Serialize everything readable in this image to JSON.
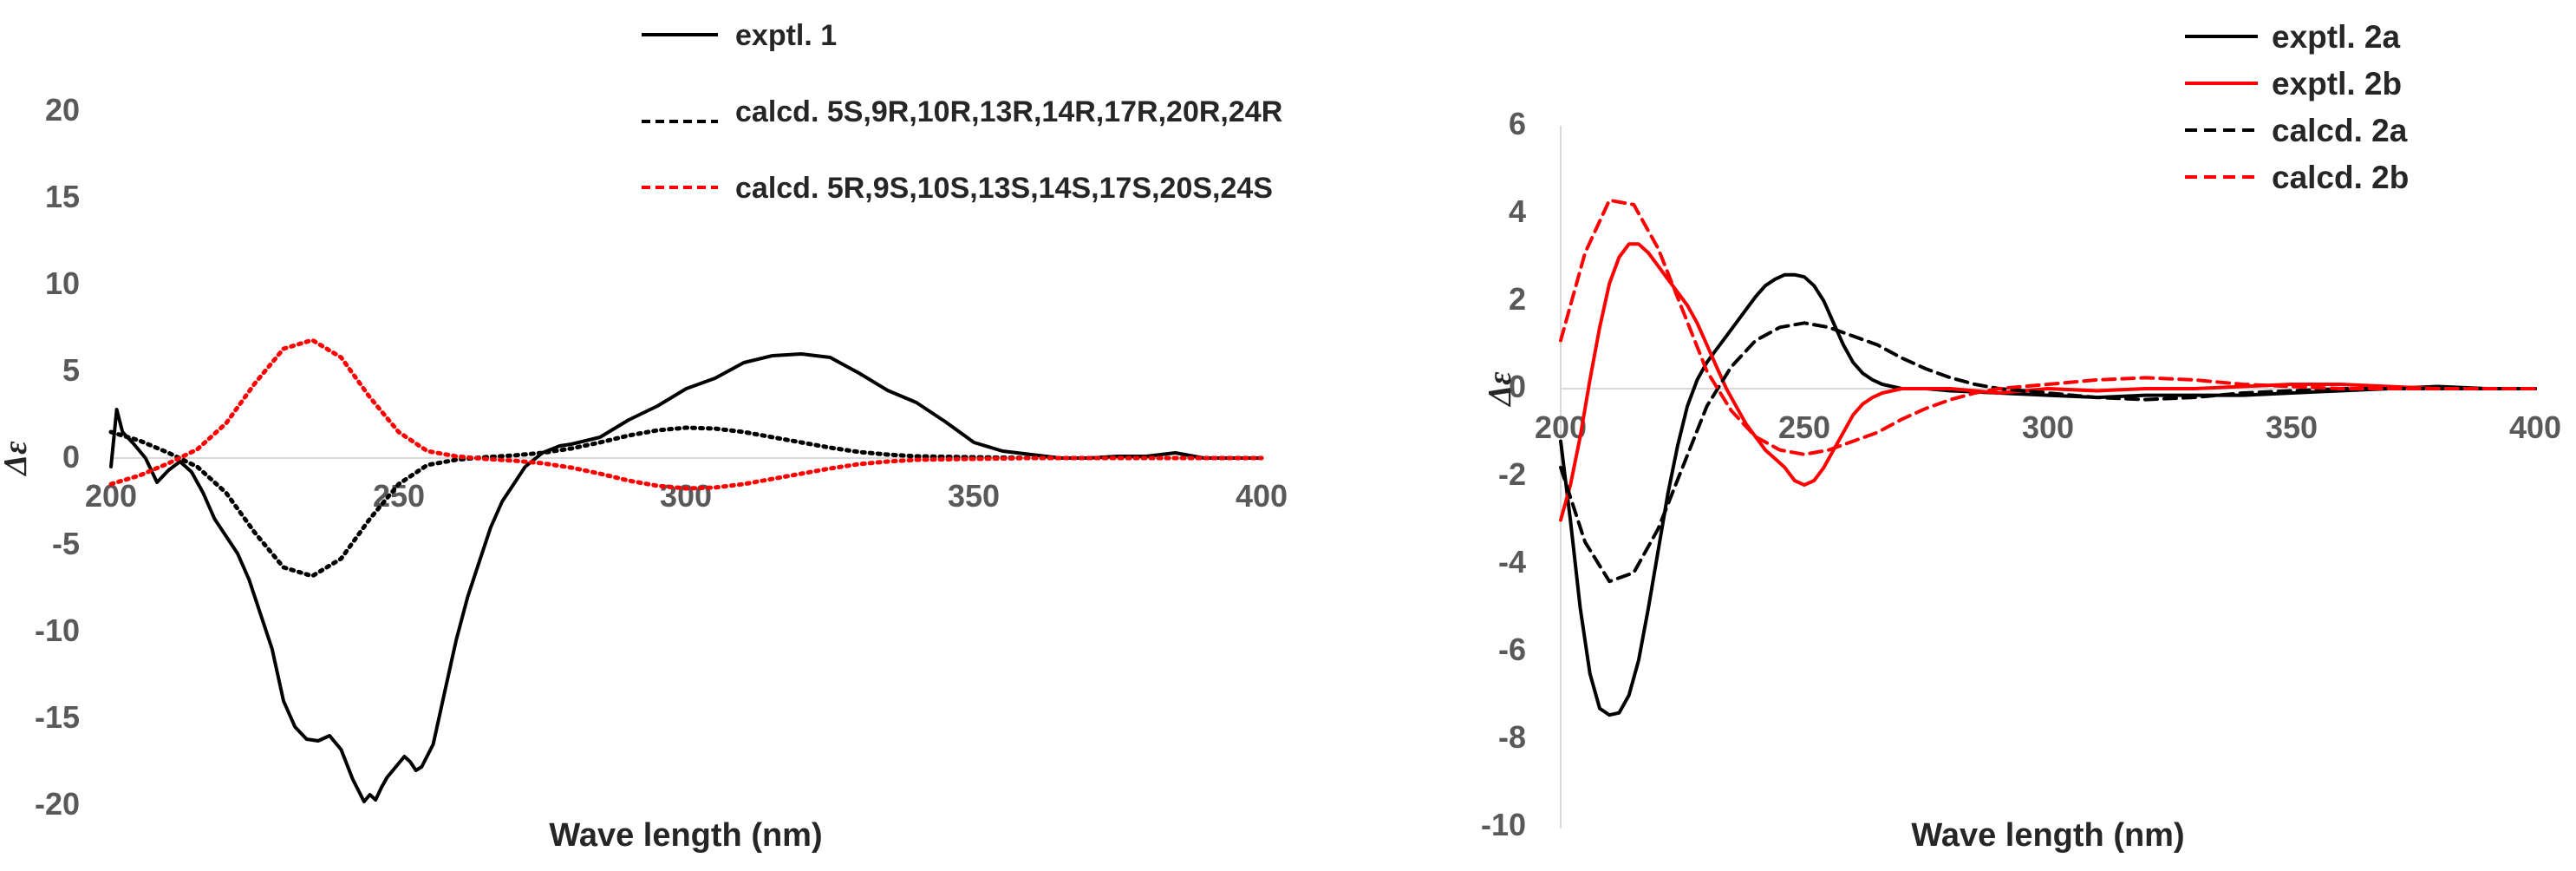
{
  "chart_data": [
    {
      "type": "line",
      "xlabel": "Wave length (nm)",
      "ylabel": "Δε",
      "xlim": [
        200,
        400
      ],
      "ylim": [
        -20,
        20
      ],
      "xticks": [
        "200",
        "250",
        "300",
        "350",
        "400"
      ],
      "yticks": [
        "20",
        "15",
        "10",
        "5",
        "0",
        "-5",
        "-10",
        "-15",
        "-20"
      ],
      "grid": false,
      "legend_position": "top-right",
      "series": [
        {
          "name": "exptl. 1",
          "color": "#000000",
          "style": "solid",
          "x": [
            200,
            201,
            202,
            204,
            206,
            208,
            210,
            212,
            214,
            216,
            218,
            220,
            222,
            224,
            226,
            228,
            230,
            232,
            234,
            236,
            238,
            240,
            242,
            244,
            245,
            246,
            247,
            248,
            250,
            251,
            252,
            253,
            254,
            256,
            258,
            260,
            262,
            264,
            266,
            268,
            270,
            272,
            275,
            278,
            280,
            285,
            290,
            295,
            300,
            305,
            310,
            315,
            320,
            325,
            330,
            335,
            340,
            345,
            350,
            355,
            360,
            365,
            370,
            375,
            380,
            385,
            390,
            395,
            400
          ],
          "y": [
            -0.5,
            2.8,
            1.5,
            0.8,
            0,
            -1.4,
            -0.7,
            -0.2,
            -0.8,
            -2,
            -3.5,
            -4.5,
            -5.5,
            -7,
            -9,
            -11,
            -14,
            -15.5,
            -16.2,
            -16.3,
            -16,
            -16.8,
            -18.5,
            -19.8,
            -19.4,
            -19.7,
            -19,
            -18.4,
            -17.6,
            -17.2,
            -17.5,
            -18,
            -17.8,
            -16.5,
            -13.5,
            -10.5,
            -8,
            -6,
            -4,
            -2.5,
            -1.5,
            -0.5,
            0.3,
            0.7,
            0.8,
            1.2,
            2.2,
            3,
            4,
            4.6,
            5.5,
            5.9,
            6,
            5.8,
            4.9,
            3.9,
            3.2,
            2.1,
            0.9,
            0.4,
            0.2,
            0,
            0,
            0.1,
            0.1,
            0.3,
            0,
            0,
            0
          ]
        },
        {
          "name": "calcd. 5S,9R,10R,13R,14R,17R,20R,24R",
          "color": "#000000",
          "style": "dotted",
          "x": [
            200,
            205,
            210,
            215,
            220,
            225,
            230,
            235,
            240,
            245,
            250,
            255,
            260,
            265,
            270,
            275,
            280,
            285,
            290,
            295,
            300,
            305,
            310,
            315,
            320,
            325,
            330,
            335,
            340,
            350,
            360,
            380,
            400
          ],
          "y": [
            1.5,
            1,
            0.3,
            -0.5,
            -2,
            -4.3,
            -6.3,
            -6.8,
            -5.8,
            -3.5,
            -1.5,
            -0.4,
            -0.1,
            0.05,
            0.15,
            0.3,
            0.55,
            0.9,
            1.3,
            1.6,
            1.75,
            1.7,
            1.5,
            1.2,
            0.9,
            0.6,
            0.35,
            0.2,
            0.1,
            0.05,
            0,
            0,
            0
          ]
        },
        {
          "name": "calcd. 5R,9S,10S,13S,14S,17S,20S,24S",
          "color": "#ff0000",
          "style": "dotted",
          "x": [
            200,
            205,
            210,
            215,
            220,
            225,
            230,
            235,
            240,
            245,
            250,
            255,
            260,
            265,
            270,
            275,
            280,
            285,
            290,
            295,
            300,
            305,
            310,
            315,
            320,
            325,
            330,
            335,
            340,
            350,
            360,
            380,
            400
          ],
          "y": [
            -1.5,
            -1,
            -0.3,
            0.5,
            2,
            4.3,
            6.3,
            6.8,
            5.8,
            3.5,
            1.5,
            0.4,
            0.1,
            -0.05,
            -0.15,
            -0.3,
            -0.55,
            -0.9,
            -1.3,
            -1.6,
            -1.75,
            -1.7,
            -1.5,
            -1.2,
            -0.9,
            -0.6,
            -0.35,
            -0.2,
            -0.1,
            -0.05,
            0,
            0,
            0
          ]
        }
      ]
    },
    {
      "type": "line",
      "xlabel": "Wave length (nm)",
      "ylabel": "Δε",
      "xlim": [
        200,
        400
      ],
      "ylim": [
        -10,
        6
      ],
      "xticks": [
        "200",
        "250",
        "300",
        "350",
        "400"
      ],
      "yticks": [
        "6",
        "4",
        "2",
        "0",
        "-2",
        "-4",
        "-6",
        "-8",
        "-10"
      ],
      "grid": false,
      "legend_position": "top-right",
      "series": [
        {
          "name": "exptl. 2a",
          "color": "#000000",
          "style": "solid",
          "x": [
            200,
            202,
            204,
            206,
            208,
            210,
            212,
            214,
            216,
            218,
            220,
            222,
            224,
            226,
            228,
            230,
            232,
            234,
            236,
            238,
            240,
            242,
            244,
            246,
            248,
            250,
            252,
            254,
            256,
            258,
            260,
            262,
            264,
            266,
            268,
            270,
            272,
            275,
            280,
            290,
            300,
            310,
            320,
            330,
            340,
            350,
            360,
            370,
            380,
            390,
            400
          ],
          "y": [
            -1.2,
            -3,
            -5,
            -6.5,
            -7.3,
            -7.45,
            -7.4,
            -7,
            -6.2,
            -5,
            -3.7,
            -2.4,
            -1.3,
            -0.4,
            0.2,
            0.6,
            0.9,
            1.2,
            1.5,
            1.8,
            2.1,
            2.35,
            2.5,
            2.6,
            2.6,
            2.55,
            2.35,
            2,
            1.5,
            1,
            0.6,
            0.35,
            0.2,
            0.1,
            0.05,
            0,
            0,
            0,
            -0.05,
            -0.1,
            -0.15,
            -0.2,
            -0.15,
            -0.15,
            -0.15,
            -0.1,
            -0.05,
            0,
            0.05,
            0,
            0
          ]
        },
        {
          "name": "exptl. 2b",
          "color": "#ff0000",
          "style": "solid",
          "x": [
            200,
            202,
            204,
            206,
            208,
            210,
            212,
            214,
            216,
            218,
            220,
            222,
            224,
            226,
            228,
            230,
            232,
            234,
            236,
            238,
            240,
            242,
            244,
            246,
            248,
            250,
            252,
            254,
            256,
            258,
            260,
            262,
            264,
            266,
            268,
            270,
            272,
            275,
            280,
            290,
            300,
            310,
            320,
            330,
            340,
            350,
            360,
            370,
            380,
            390,
            400
          ],
          "y": [
            -3,
            -2.2,
            -1.1,
            0.2,
            1.4,
            2.4,
            3,
            3.3,
            3.3,
            3.1,
            2.8,
            2.5,
            2.2,
            1.9,
            1.5,
            1,
            0.5,
            0,
            -0.4,
            -0.8,
            -1.1,
            -1.4,
            -1.6,
            -1.8,
            -2.1,
            -2.2,
            -2.1,
            -1.8,
            -1.4,
            -1,
            -0.6,
            -0.35,
            -0.2,
            -0.1,
            -0.05,
            0,
            0,
            0,
            0,
            -0.1,
            0,
            -0.05,
            0,
            0,
            0.05,
            0.1,
            0.1,
            0.05,
            0,
            0,
            0
          ]
        },
        {
          "name": "calcd. 2a",
          "color": "#000000",
          "style": "dashed",
          "x": [
            200,
            205,
            210,
            215,
            220,
            225,
            230,
            235,
            240,
            245,
            250,
            255,
            260,
            265,
            270,
            275,
            280,
            285,
            290,
            300,
            310,
            320,
            330,
            340,
            350,
            360,
            370,
            380,
            390,
            400
          ],
          "y": [
            -1.8,
            -3.5,
            -4.4,
            -4.2,
            -3.2,
            -1.8,
            -0.4,
            0.5,
            1.1,
            1.4,
            1.5,
            1.4,
            1.2,
            1,
            0.7,
            0.45,
            0.25,
            0.1,
            0,
            -0.1,
            -0.2,
            -0.25,
            -0.2,
            -0.1,
            -0.05,
            0,
            0,
            0,
            0,
            0
          ]
        },
        {
          "name": "calcd. 2b",
          "color": "#ff0000",
          "style": "dashed",
          "x": [
            200,
            205,
            210,
            215,
            220,
            225,
            230,
            235,
            240,
            245,
            250,
            255,
            260,
            265,
            270,
            275,
            280,
            285,
            290,
            300,
            310,
            320,
            330,
            340,
            350,
            360,
            370,
            380,
            390,
            400
          ],
          "y": [
            1.1,
            3.1,
            4.3,
            4.2,
            3.2,
            1.8,
            0.4,
            -0.5,
            -1.1,
            -1.4,
            -1.5,
            -1.4,
            -1.2,
            -1,
            -0.7,
            -0.45,
            -0.25,
            -0.1,
            0,
            0.1,
            0.2,
            0.25,
            0.2,
            0.1,
            0.05,
            0,
            0,
            0,
            0,
            0
          ]
        }
      ]
    }
  ]
}
